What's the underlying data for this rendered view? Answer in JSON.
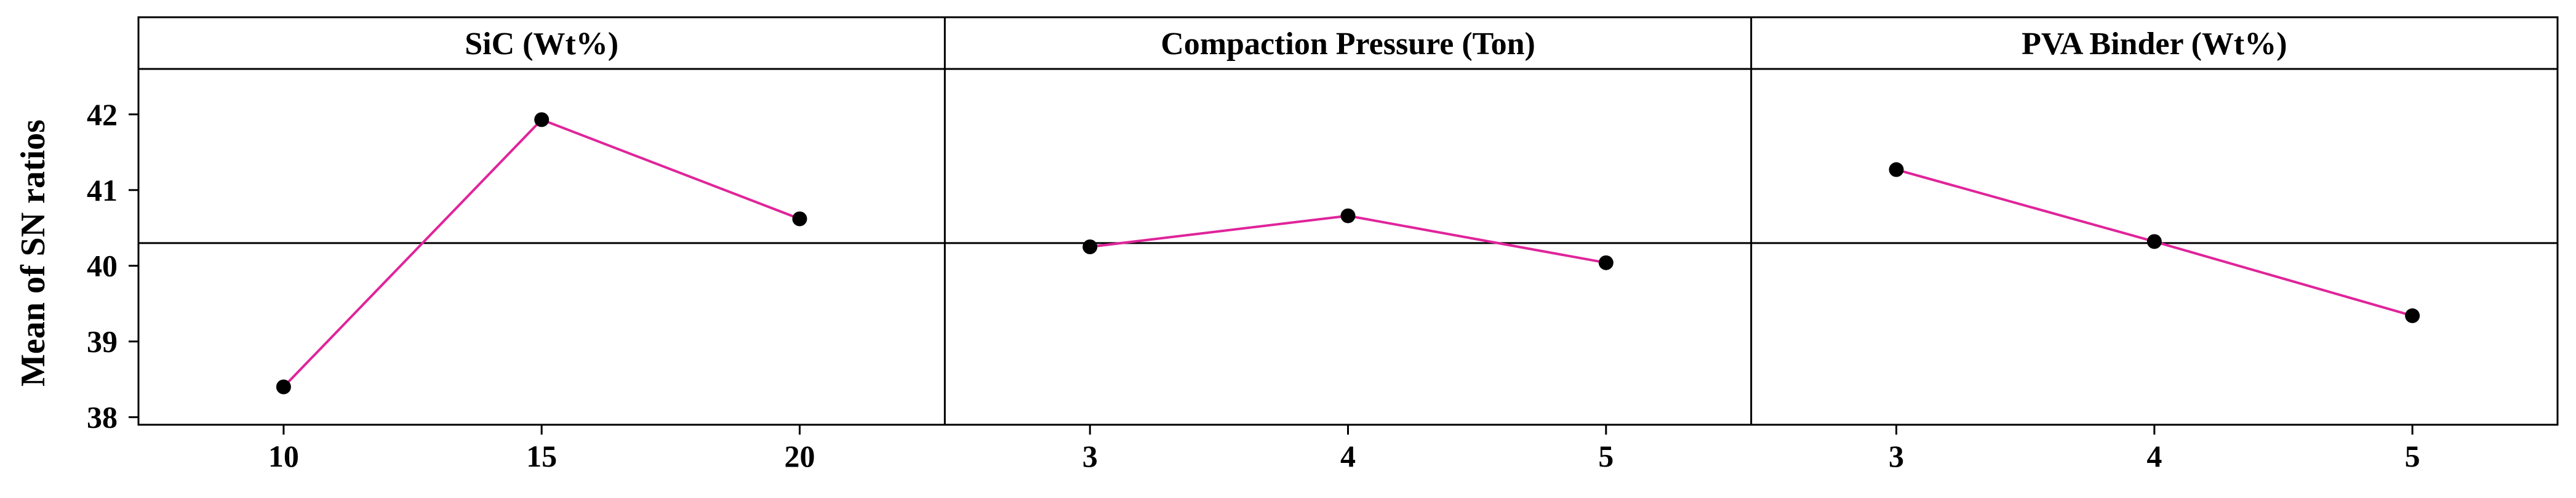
{
  "chart_data": {
    "type": "line",
    "title": "",
    "ylabel": "Mean of SN ratios",
    "ylim": [
      37.9,
      42.6
    ],
    "yticks": [
      38,
      39,
      40,
      41,
      42
    ],
    "reference_value": 40.3,
    "line_color": "#e0249a",
    "marker_color": "#000000",
    "grid": false,
    "panels": [
      {
        "title": "SiC (Wt%)",
        "categories": [
          "10",
          "15",
          "20"
        ],
        "values": [
          38.4,
          41.93,
          40.62
        ]
      },
      {
        "title": "Compaction Pressure (Ton)",
        "categories": [
          "3",
          "4",
          "5"
        ],
        "values": [
          40.25,
          40.66,
          40.04
        ]
      },
      {
        "title": "PVA Binder (Wt%)",
        "categories": [
          "3",
          "4",
          "5"
        ],
        "values": [
          41.27,
          40.32,
          39.34
        ]
      }
    ]
  }
}
